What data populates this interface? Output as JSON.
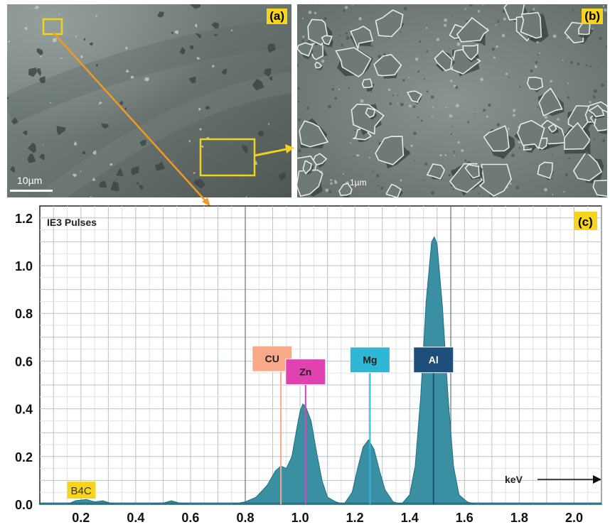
{
  "panel_a": {
    "tag": "(a)",
    "scale_label": "10µm"
  },
  "panel_b": {
    "tag": "(b)",
    "scale_label": "1µm"
  },
  "panel_c": {
    "tag": "(c)",
    "corner_title": "IE3 Pulses",
    "axis_unit_label": "keV"
  },
  "colors": {
    "tag_yellow": "#f7d51d",
    "arrow_orange": "#f29a1f",
    "peak_fill": "#3a8fa3",
    "peak_fill_dark": "#1f6f84"
  },
  "chart_data": {
    "type": "area",
    "title": "",
    "xlabel": "keV",
    "ylabel": "",
    "xlim": [
      0.05,
      2.1
    ],
    "ylim": [
      0,
      1.25
    ],
    "xticks": [
      "0.2",
      "0.4",
      "0.6",
      "0.8",
      "1.0",
      "1.2",
      "1.4",
      "1.6",
      "1.8",
      "2.0"
    ],
    "yticks": [
      "0.0",
      "0.2",
      "0.4",
      "0.6",
      "0.8",
      "1.0",
      "1.2"
    ],
    "grid": true,
    "series": [
      {
        "x": [
          0.05,
          0.15,
          0.18,
          0.22,
          0.25,
          0.28,
          0.32,
          0.45,
          0.5,
          0.53,
          0.56,
          0.6,
          0.75,
          0.8,
          0.84,
          0.88,
          0.91,
          0.93,
          0.95,
          0.97,
          0.99,
          1.0,
          1.01,
          1.02,
          1.04,
          1.06,
          1.08,
          1.1,
          1.13,
          1.16,
          1.19,
          1.21,
          1.23,
          1.25,
          1.27,
          1.29,
          1.31,
          1.34,
          1.37,
          1.4,
          1.42,
          1.44,
          1.46,
          1.48,
          1.49,
          1.5,
          1.52,
          1.54,
          1.56,
          1.58,
          1.61,
          1.64,
          1.7,
          2.1
        ],
        "y": [
          0.0,
          0.0,
          0.015,
          0.02,
          0.01,
          0.015,
          0.0,
          0.0,
          0.005,
          0.015,
          0.005,
          0.0,
          0.0,
          0.01,
          0.03,
          0.08,
          0.14,
          0.16,
          0.15,
          0.2,
          0.33,
          0.39,
          0.42,
          0.41,
          0.35,
          0.22,
          0.1,
          0.03,
          0.01,
          0.0,
          0.05,
          0.15,
          0.24,
          0.27,
          0.23,
          0.14,
          0.06,
          0.01,
          0.0,
          0.04,
          0.16,
          0.45,
          0.85,
          1.1,
          1.12,
          1.09,
          0.82,
          0.45,
          0.16,
          0.04,
          0.01,
          0.0,
          0.0,
          0.0
        ]
      }
    ],
    "markers": [
      {
        "label": "B4C",
        "x": 0.18,
        "y": 0.02,
        "color": "#f7d51d",
        "text_color": "#333333"
      },
      {
        "label": "CU",
        "x": 0.93,
        "y": 0.56,
        "color": "#f7a98a",
        "text_color": "#222222"
      },
      {
        "label": "Zn",
        "x": 1.02,
        "y": 0.52,
        "color": "#e042b0",
        "text_color": "#222222"
      },
      {
        "label": "Mg",
        "x": 1.255,
        "y": 0.56,
        "color": "#2fb7d6",
        "text_color": "#222222"
      },
      {
        "label": "Al",
        "x": 1.487,
        "y": 0.56,
        "color": "#1d4f7a",
        "text_color": "#ffffff"
      }
    ]
  }
}
